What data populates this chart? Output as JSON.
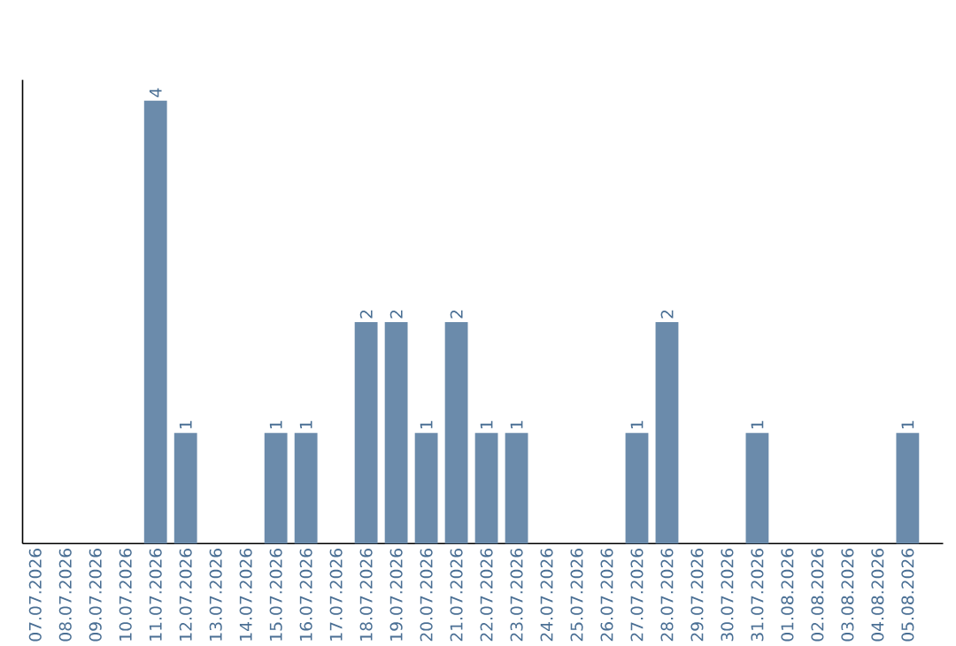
{
  "chart_data": {
    "type": "bar",
    "categories": [
      "07.07.2026",
      "08.07.2026",
      "09.07.2026",
      "10.07.2026",
      "11.07.2026",
      "12.07.2026",
      "13.07.2026",
      "14.07.2026",
      "15.07.2026",
      "16.07.2026",
      "17.07.2026",
      "18.07.2026",
      "19.07.2026",
      "20.07.2026",
      "21.07.2026",
      "22.07.2026",
      "23.07.2026",
      "24.07.2026",
      "25.07.2026",
      "26.07.2026",
      "27.07.2026",
      "28.07.2026",
      "29.07.2026",
      "30.07.2026",
      "31.07.2026",
      "01.08.2026",
      "02.08.2026",
      "03.08.2026",
      "04.08.2026",
      "05.08.2026"
    ],
    "values": [
      0,
      0,
      0,
      0,
      4,
      1,
      0,
      0,
      1,
      1,
      0,
      2,
      2,
      1,
      2,
      1,
      1,
      0,
      0,
      0,
      1,
      2,
      0,
      0,
      1,
      0,
      0,
      0,
      0,
      1
    ],
    "value_labels": [
      null,
      null,
      null,
      null,
      "4",
      "1",
      null,
      null,
      "1",
      "1",
      null,
      "2",
      "2",
      "1",
      "2",
      "1",
      "1",
      null,
      null,
      null,
      "1",
      "2",
      null,
      null,
      "1",
      null,
      null,
      null,
      null,
      "1"
    ],
    "color": "#6b8bab",
    "tick_labels": "x"
  }
}
